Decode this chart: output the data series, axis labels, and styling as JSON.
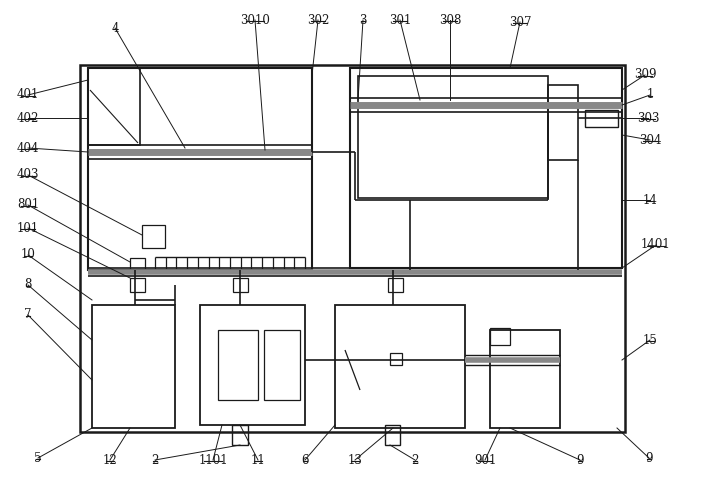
{
  "bg_color": "#ffffff",
  "line_color": "#1a1a1a",
  "gray_color": "#888888",
  "fig_width": 7.02,
  "fig_height": 4.83,
  "dpi": 100
}
